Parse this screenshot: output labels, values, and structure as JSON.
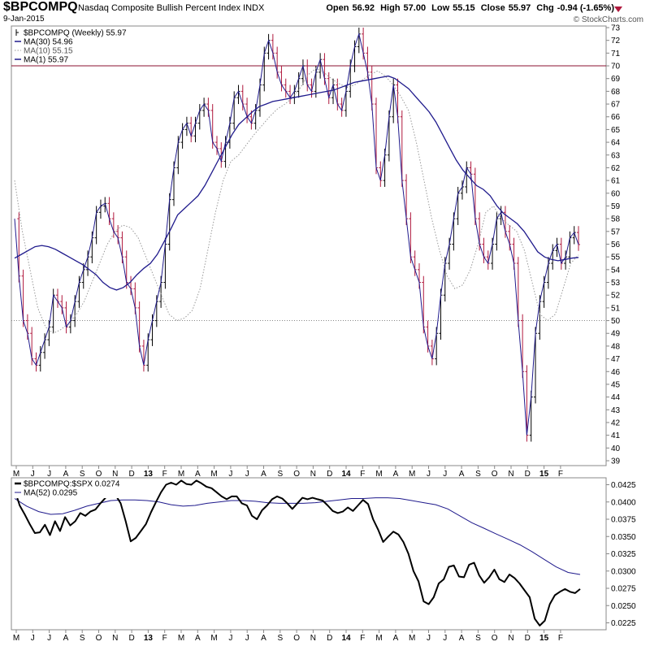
{
  "header": {
    "symbol": "$BPCOMPQ",
    "name": "Nasdaq Composite Bullish Percent Index",
    "exchange": "INDX",
    "date": "9-Jan-2015",
    "credit": "© StockCharts.com",
    "open_label": "Open",
    "open": "56.92",
    "high_label": "High",
    "high": "57.00",
    "low_label": "Low",
    "low": "55.15",
    "close_label": "Close",
    "close": "55.97",
    "chg_label": "Chg",
    "chg": "-0.94 (-1.65%)",
    "chg_icon": "down-triangle-icon"
  },
  "colors": {
    "up": "#000000",
    "down": "#b0183d",
    "ma30": "#1f1a8c",
    "ma10": "#999999",
    "ma1": "#1f1a8c",
    "ratio": "#000000",
    "ma52": "#1f1a8c",
    "refline70": "#8b1030"
  },
  "x_axis_labels": [
    "M",
    "J",
    "J",
    "A",
    "S",
    "O",
    "N",
    "D",
    "13",
    "F",
    "M",
    "A",
    "M",
    "J",
    "J",
    "A",
    "S",
    "O",
    "N",
    "D",
    "14",
    "F",
    "M",
    "A",
    "M",
    "J",
    "J",
    "A",
    "S",
    "O",
    "N",
    "D",
    "15",
    "F"
  ],
  "chart_data": [
    {
      "type": "candlestick",
      "title": "$BPCOMPQ (Weekly) 55.97",
      "legend": [
        {
          "name": "$BPCOMPQ (Weekly) 55.97",
          "style": "price"
        },
        {
          "name": "MA(30) 54.96",
          "style": "solid"
        },
        {
          "name": "MA(10) 55.15",
          "style": "dotted"
        },
        {
          "name": "MA(1) 55.97",
          "style": "solid"
        }
      ],
      "ylim": [
        39,
        73
      ],
      "y_ticks": [
        39,
        40,
        41,
        42,
        43,
        44,
        45,
        46,
        47,
        48,
        49,
        50,
        51,
        52,
        53,
        54,
        55,
        56,
        57,
        58,
        59,
        60,
        61,
        62,
        63,
        64,
        65,
        66,
        67,
        68,
        69,
        70,
        71,
        72,
        73
      ],
      "reference_lines": [
        {
          "value": 70,
          "style": "solid"
        },
        {
          "value": 50,
          "style": "dotted"
        }
      ],
      "close": [
        58.0,
        53.5,
        50.0,
        49.0,
        47.0,
        46.5,
        47.5,
        48.5,
        49.5,
        52.0,
        51.5,
        51.0,
        49.5,
        50.0,
        51.5,
        53.0,
        54.0,
        55.0,
        56.5,
        58.5,
        59.0,
        59.2,
        58.0,
        57.0,
        56.5,
        55.0,
        53.0,
        52.5,
        51.0,
        48.0,
        46.5,
        48.5,
        50.0,
        51.5,
        53.0,
        56.0,
        59.5,
        62.0,
        64.0,
        65.0,
        65.5,
        64.5,
        65.5,
        66.5,
        67.0,
        66.5,
        64.0,
        63.5,
        62.5,
        64.0,
        65.5,
        67.5,
        68.0,
        67.0,
        66.0,
        65.5,
        66.5,
        68.5,
        71.0,
        72.0,
        71.0,
        69.5,
        68.5,
        68.0,
        67.5,
        68.0,
        69.0,
        70.0,
        68.5,
        68.0,
        69.5,
        70.5,
        69.0,
        67.5,
        68.5,
        67.0,
        66.5,
        68.0,
        70.0,
        71.5,
        72.5,
        71.0,
        69.5,
        67.0,
        62.0,
        61.0,
        63.0,
        66.0,
        68.5,
        66.0,
        61.0,
        58.0,
        55.0,
        54.0,
        53.0,
        49.5,
        48.0,
        47.0,
        49.0,
        52.0,
        54.5,
        56.0,
        58.0,
        60.0,
        60.5,
        62.0,
        61.5,
        58.0,
        56.0,
        55.0,
        54.5,
        56.0,
        58.0,
        58.5,
        57.0,
        56.0,
        54.5,
        50.0,
        46.0,
        41.0,
        44.0,
        49.0,
        51.5,
        53.0,
        54.5,
        55.5,
        56.0,
        54.5,
        55.0,
        56.5,
        56.92,
        55.97
      ],
      "ma30": [
        54.9,
        55.2,
        55.5,
        55.8,
        55.9,
        55.8,
        55.6,
        55.3,
        55.0,
        54.7,
        54.4,
        54.0,
        53.6,
        53.0,
        52.6,
        52.4,
        52.6,
        53.0,
        53.6,
        54.1,
        54.5,
        55.2,
        56.2,
        57.2,
        58.3,
        58.8,
        59.3,
        59.8,
        60.6,
        61.6,
        62.6,
        63.6,
        64.6,
        65.4,
        65.9,
        66.4,
        66.8,
        67.0,
        67.2,
        67.3,
        67.4,
        67.5,
        67.6,
        67.7,
        67.8,
        67.9,
        68.0,
        68.1,
        68.3,
        68.5,
        68.7,
        68.8,
        68.9,
        69.0,
        69.1,
        69.2,
        69.0,
        68.6,
        68.2,
        67.6,
        67.0,
        66.4,
        65.6,
        64.6,
        63.6,
        62.6,
        61.8,
        61.2,
        60.6,
        60.3,
        59.8,
        59.0,
        58.4,
        58.0,
        57.6,
        57.0,
        56.2,
        55.4,
        55.0,
        54.8,
        54.7,
        54.8,
        54.9,
        54.96
      ],
      "ma10": [
        61.0,
        57.0,
        54.0,
        51.0,
        49.5,
        49.0,
        49.3,
        49.8,
        50.5,
        51.5,
        53.0,
        54.5,
        56.0,
        57.0,
        57.5,
        57.3,
        56.5,
        55.0,
        53.5,
        52.0,
        50.5,
        50.0,
        50.2,
        50.8,
        52.5,
        55.5,
        58.5,
        61.0,
        62.5,
        63.0,
        63.8,
        64.6,
        65.3,
        66.0,
        66.6,
        67.0,
        67.5,
        68.3,
        69.3,
        69.8,
        69.5,
        69.0,
        68.6,
        68.3,
        68.5,
        68.9,
        69.3,
        69.6,
        69.2,
        68.5,
        67.6,
        66.5,
        64.0,
        61.0,
        58.0,
        55.5,
        53.5,
        52.5,
        52.8,
        54.0,
        56.0,
        58.5,
        59.0,
        58.0,
        57.5,
        57.0,
        55.5,
        53.0,
        50.5,
        50.0,
        50.5,
        52.5,
        54.5,
        55.15
      ]
    },
    {
      "type": "line",
      "title": "$BPCOMPQ:$SPX 0.0274",
      "legend": [
        {
          "name": "$BPCOMPQ:$SPX 0.0274",
          "style": "thick"
        },
        {
          "name": "MA(52) 0.0295",
          "style": "thin"
        }
      ],
      "ylim": [
        0.0215,
        0.0435
      ],
      "y_ticks": [
        "0.0225",
        "0.0250",
        "0.0275",
        "0.0300",
        "0.0325",
        "0.0350",
        "0.0375",
        "0.0400",
        "0.0425"
      ],
      "ratio": [
        0.0418,
        0.0395,
        0.0382,
        0.0368,
        0.0355,
        0.0356,
        0.0367,
        0.0352,
        0.0372,
        0.0358,
        0.0378,
        0.0366,
        0.0372,
        0.0384,
        0.038,
        0.0386,
        0.0389,
        0.0398,
        0.0406,
        0.0414,
        0.041,
        0.0398,
        0.0372,
        0.0343,
        0.0348,
        0.0358,
        0.0368,
        0.0385,
        0.04,
        0.0414,
        0.0425,
        0.0428,
        0.0425,
        0.0431,
        0.0426,
        0.0425,
        0.0431,
        0.0427,
        0.0422,
        0.042,
        0.0414,
        0.0408,
        0.0404,
        0.0408,
        0.0408,
        0.0398,
        0.0395,
        0.038,
        0.0375,
        0.0388,
        0.0395,
        0.0404,
        0.0408,
        0.0405,
        0.0398,
        0.039,
        0.0398,
        0.0406,
        0.0404,
        0.0406,
        0.0404,
        0.0402,
        0.0395,
        0.0387,
        0.0384,
        0.0386,
        0.0392,
        0.0387,
        0.0395,
        0.0403,
        0.0397,
        0.0375,
        0.036,
        0.0342,
        0.035,
        0.0357,
        0.0353,
        0.0342,
        0.0325,
        0.03,
        0.0285,
        0.0256,
        0.0252,
        0.0262,
        0.0282,
        0.0288,
        0.0306,
        0.0308,
        0.0292,
        0.0291,
        0.0309,
        0.0312,
        0.0294,
        0.0283,
        0.0291,
        0.0302,
        0.0288,
        0.0284,
        0.0295,
        0.029,
        0.0282,
        0.0272,
        0.0262,
        0.0231,
        0.0221,
        0.0228,
        0.0252,
        0.0265,
        0.027,
        0.0274,
        0.027,
        0.0268,
        0.0274
      ],
      "ma52": [
        0.0405,
        0.0394,
        0.0386,
        0.0382,
        0.0383,
        0.0388,
        0.0394,
        0.0398,
        0.0402,
        0.0403,
        0.0403,
        0.0402,
        0.04,
        0.0396,
        0.0394,
        0.0395,
        0.0398,
        0.04,
        0.0402,
        0.0402,
        0.0401,
        0.0399,
        0.0398,
        0.0398,
        0.0398,
        0.0399,
        0.0401,
        0.0403,
        0.0405,
        0.0405,
        0.0406,
        0.0406,
        0.0405,
        0.0402,
        0.0399,
        0.0396,
        0.039,
        0.038,
        0.037,
        0.0362,
        0.0354,
        0.0346,
        0.0338,
        0.0328,
        0.0317,
        0.0306,
        0.0298,
        0.0295
      ]
    }
  ]
}
